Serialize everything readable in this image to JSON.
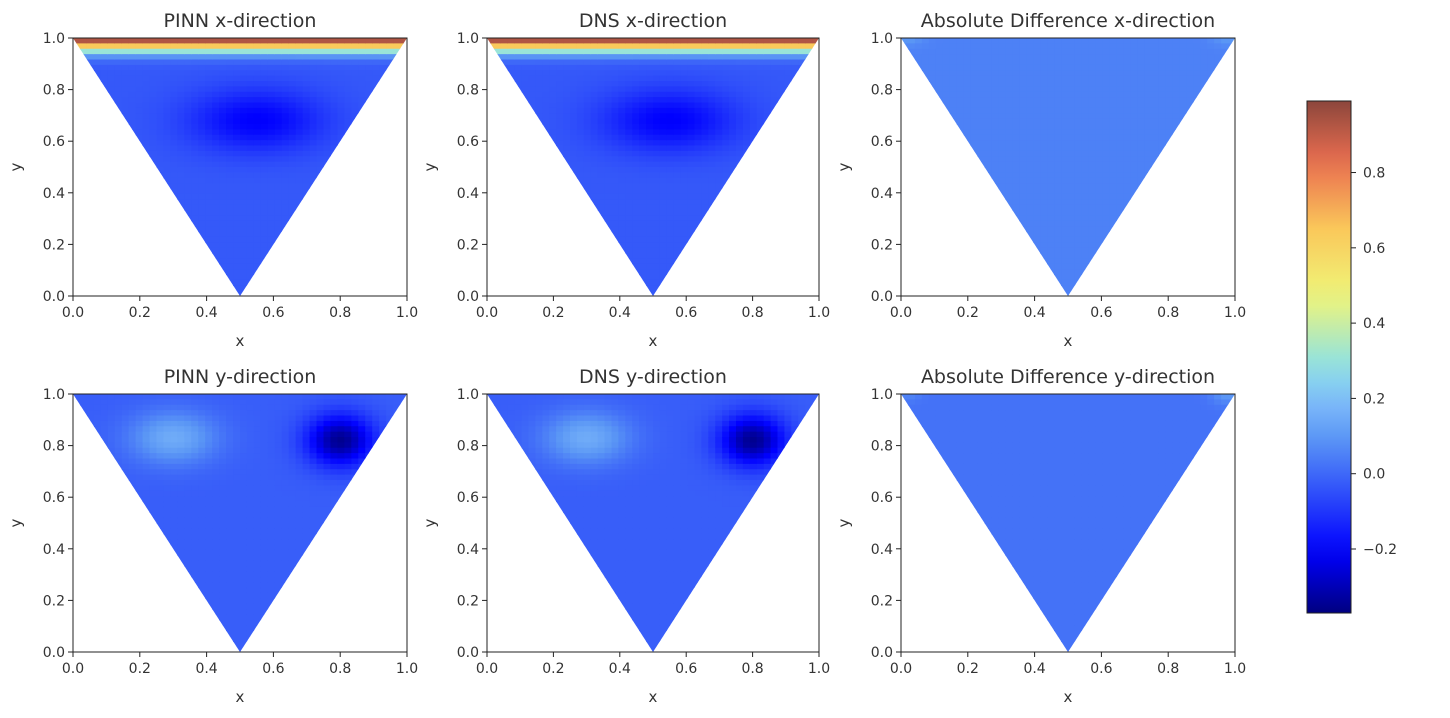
{
  "chart_data": [
    {
      "type": "heatmap",
      "title": "PINN x-direction",
      "xlabel": "x",
      "ylabel": "y",
      "xlim": [
        0,
        1
      ],
      "ylim": [
        0,
        1
      ],
      "xticks": [
        "0.0",
        "0.2",
        "0.4",
        "0.6",
        "0.8",
        "1.0"
      ],
      "yticks": [
        "0.0",
        "0.2",
        "0.4",
        "0.6",
        "0.8",
        "1.0"
      ],
      "domain": "triangle (0,1)-(1,1)-(0.5,0)",
      "field_range": [
        -0.18,
        1.0
      ]
    },
    {
      "type": "heatmap",
      "title": "DNS x-direction",
      "xlabel": "x",
      "ylabel": "y",
      "xlim": [
        0,
        1
      ],
      "ylim": [
        0,
        1
      ],
      "xticks": [
        "0.0",
        "0.2",
        "0.4",
        "0.6",
        "0.8",
        "1.0"
      ],
      "yticks": [
        "0.0",
        "0.2",
        "0.4",
        "0.6",
        "0.8",
        "1.0"
      ],
      "domain": "triangle (0,1)-(1,1)-(0.5,0)",
      "field_range": [
        -0.18,
        1.0
      ]
    },
    {
      "type": "heatmap",
      "title": "Absolute Difference x-direction",
      "xlabel": "x",
      "ylabel": "y",
      "xlim": [
        0,
        1
      ],
      "ylim": [
        0,
        1
      ],
      "xticks": [
        "0.0",
        "0.2",
        "0.4",
        "0.6",
        "0.8",
        "1.0"
      ],
      "yticks": [
        "0.0",
        "0.2",
        "0.4",
        "0.6",
        "0.8",
        "1.0"
      ],
      "domain": "triangle (0,1)-(1,1)-(0.5,0)",
      "field_range": [
        0.0,
        0.08
      ]
    },
    {
      "type": "heatmap",
      "title": "PINN y-direction",
      "xlabel": "x",
      "ylabel": "y",
      "xlim": [
        0,
        1
      ],
      "ylim": [
        0,
        1
      ],
      "xticks": [
        "0.0",
        "0.2",
        "0.4",
        "0.6",
        "0.8",
        "1.0"
      ],
      "yticks": [
        "0.0",
        "0.2",
        "0.4",
        "0.6",
        "0.8",
        "1.0"
      ],
      "domain": "triangle (0,1)-(1,1)-(0.5,0)",
      "field_range": [
        -0.32,
        0.2
      ]
    },
    {
      "type": "heatmap",
      "title": "DNS y-direction",
      "xlabel": "x",
      "ylabel": "y",
      "xlim": [
        0,
        1
      ],
      "ylim": [
        0,
        1
      ],
      "xticks": [
        "0.0",
        "0.2",
        "0.4",
        "0.6",
        "0.8",
        "1.0"
      ],
      "yticks": [
        "0.0",
        "0.2",
        "0.4",
        "0.6",
        "0.8",
        "1.0"
      ],
      "domain": "triangle (0,1)-(1,1)-(0.5,0)",
      "field_range": [
        -0.34,
        0.2
      ]
    },
    {
      "type": "heatmap",
      "title": "Absolute Difference y-direction",
      "xlabel": "x",
      "ylabel": "y",
      "xlim": [
        0,
        1
      ],
      "ylim": [
        0,
        1
      ],
      "xticks": [
        "0.0",
        "0.2",
        "0.4",
        "0.6",
        "0.8",
        "1.0"
      ],
      "yticks": [
        "0.0",
        "0.2",
        "0.4",
        "0.6",
        "0.8",
        "1.0"
      ],
      "domain": "triangle (0,1)-(1,1)-(0.5,0)",
      "field_range": [
        0.0,
        0.1
      ]
    }
  ],
  "colorbar": {
    "colormap": "turbo/jet",
    "vmin": -0.37,
    "vmax": 0.99,
    "ticks": [
      {
        "value": -0.2,
        "label": "−0.2"
      },
      {
        "value": 0.0,
        "label": "0.0"
      },
      {
        "value": 0.2,
        "label": "0.2"
      },
      {
        "value": 0.4,
        "label": "0.4"
      },
      {
        "value": 0.6,
        "label": "0.6"
      },
      {
        "value": 0.8,
        "label": "0.8"
      }
    ]
  }
}
